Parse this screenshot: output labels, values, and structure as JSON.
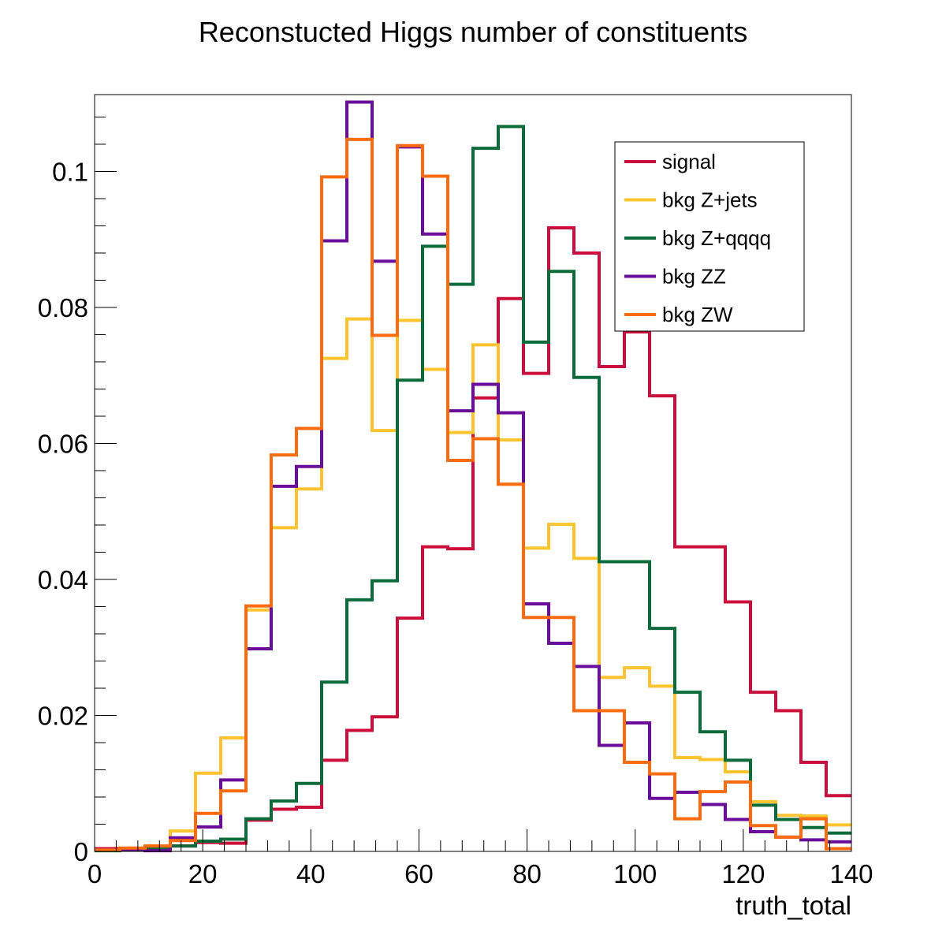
{
  "chart_data": {
    "type": "histogram",
    "title": "Reconstucted Higgs number of constituents",
    "xlabel": "truth_total",
    "ylabel": "",
    "xlim": [
      0,
      140
    ],
    "ylim": [
      0,
      0.1113
    ],
    "x_ticks": [
      0,
      20,
      40,
      60,
      80,
      100,
      120,
      140
    ],
    "x_tick_labels": [
      "0",
      "20",
      "40",
      "60",
      "80",
      "100",
      "120",
      "140"
    ],
    "y_ticks": [
      0,
      0.02,
      0.04,
      0.06,
      0.08,
      0.1
    ],
    "y_tick_labels": [
      "0",
      "0.02",
      "0.04",
      "0.06",
      "0.08",
      "0.1"
    ],
    "grid": false,
    "legend_position": "top-right",
    "bin_edges": [
      0,
      4.6667,
      9.3333,
      14,
      18.6667,
      23.3333,
      28,
      32.6667,
      37.3333,
      42,
      46.6667,
      51.3333,
      56,
      60.6667,
      65.3333,
      70,
      74.6667,
      79.3333,
      84,
      88.6667,
      93.3333,
      98,
      102.6667,
      107.3333,
      112,
      116.6667,
      121.3333,
      126,
      130.6667,
      135.3333,
      140
    ],
    "series": [
      {
        "name": "signal",
        "color": "#cc0f3a",
        "values": [
          0.0004,
          0.0004,
          0.0005,
          0.0008,
          0.0013,
          0.0012,
          0.0046,
          0.0062,
          0.0065,
          0.0134,
          0.0178,
          0.0198,
          0.0343,
          0.0448,
          0.0445,
          0.0667,
          0.0813,
          0.0703,
          0.0917,
          0.088,
          0.0713,
          0.0764,
          0.067,
          0.0448,
          0.0448,
          0.0367,
          0.0234,
          0.0207,
          0.0131,
          0.0082
        ]
      },
      {
        "name": "bkg Z+jets",
        "color": "#fdc42f",
        "values": [
          0.0001,
          0.0003,
          0.0008,
          0.003,
          0.0115,
          0.0167,
          0.0355,
          0.0476,
          0.0533,
          0.0725,
          0.0783,
          0.0619,
          0.0781,
          0.0709,
          0.0616,
          0.0745,
          0.0605,
          0.0446,
          0.0481,
          0.0431,
          0.0256,
          0.027,
          0.0243,
          0.0138,
          0.0135,
          0.0117,
          0.0073,
          0.0053,
          0.0052,
          0.0039
        ]
      },
      {
        "name": "bkg Z+qqqq",
        "color": "#0c6b3a",
        "values": [
          0.0001,
          0.0002,
          0.0004,
          0.0008,
          0.0015,
          0.0018,
          0.0048,
          0.0074,
          0.01,
          0.0249,
          0.037,
          0.0398,
          0.0693,
          0.089,
          0.0834,
          0.1034,
          0.1066,
          0.0749,
          0.0853,
          0.0697,
          0.0426,
          0.0426,
          0.0328,
          0.0234,
          0.0176,
          0.0134,
          0.0068,
          0.0047,
          0.0035,
          0.0027
        ]
      },
      {
        "name": "bkg ZZ",
        "color": "#6a0d9a",
        "values": [
          0.0002,
          0.0003,
          0.0001,
          0.002,
          0.0036,
          0.0105,
          0.0298,
          0.0537,
          0.0566,
          0.0898,
          0.1102,
          0.0868,
          0.1036,
          0.0908,
          0.0648,
          0.0687,
          0.0645,
          0.0364,
          0.0306,
          0.0272,
          0.0156,
          0.0189,
          0.0078,
          0.0087,
          0.0069,
          0.0047,
          0.0029,
          0.0021,
          0.0017,
          0.0014
        ]
      },
      {
        "name": "bkg ZW",
        "color": "#fc6c0f",
        "values": [
          0.0002,
          0.0005,
          0.0008,
          0.0016,
          0.0056,
          0.0089,
          0.0361,
          0.0583,
          0.0622,
          0.0992,
          0.1047,
          0.0759,
          0.1038,
          0.0993,
          0.0575,
          0.0607,
          0.054,
          0.0344,
          0.0344,
          0.0207,
          0.0207,
          0.0131,
          0.0114,
          0.0048,
          0.0088,
          0.0102,
          0.0038,
          0.0021,
          0.0048,
          0.0004
        ]
      }
    ]
  }
}
